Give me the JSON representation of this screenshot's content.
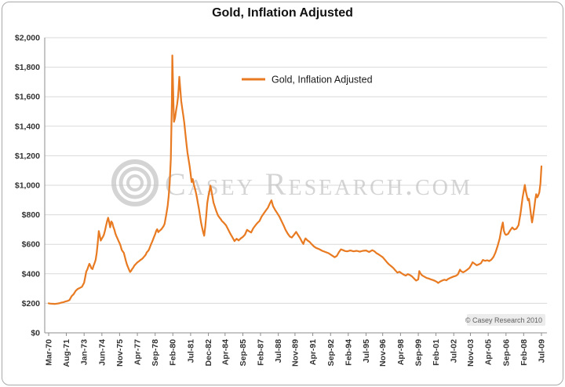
{
  "title": "Gold, Inflation Adjusted",
  "legend": {
    "label": "Gold, Inflation Adjusted"
  },
  "watermark": {
    "text": "Casey Research.com"
  },
  "copyright": "© Casey Research 2010",
  "chart_data": {
    "type": "line",
    "title": "Gold, Inflation Adjusted",
    "series_name": "Gold, Inflation Adjusted",
    "line_color": "#E87A22",
    "grid": true,
    "legend_position": "top-center",
    "ylim": [
      0,
      2000
    ],
    "yticks": [
      0,
      200,
      400,
      600,
      800,
      1000,
      1200,
      1400,
      1600,
      1800,
      2000
    ],
    "ytick_labels": [
      "$0",
      "$200",
      "$400",
      "$600",
      "$800",
      "$1,000",
      "$1,200",
      "$1,400",
      "$1,600",
      "$1,800",
      "$2,000"
    ],
    "x_range": [
      1970.17,
      2009.5
    ],
    "x_ticks": [
      {
        "label": "Mar-70",
        "year": 1970.17
      },
      {
        "label": "Aug-71",
        "year": 1971.58
      },
      {
        "label": "Jan-73",
        "year": 1973.0
      },
      {
        "label": "Jun-74",
        "year": 1974.42
      },
      {
        "label": "Nov-75",
        "year": 1975.83
      },
      {
        "label": "Apr-77",
        "year": 1977.25
      },
      {
        "label": "Sep-78",
        "year": 1978.67
      },
      {
        "label": "Feb-80",
        "year": 1980.08
      },
      {
        "label": "Jul-81",
        "year": 1981.5
      },
      {
        "label": "Dec-82",
        "year": 1982.92
      },
      {
        "label": "Apr-84",
        "year": 1984.25
      },
      {
        "label": "Sep-85",
        "year": 1985.67
      },
      {
        "label": "Feb-87",
        "year": 1987.08
      },
      {
        "label": "Jul-88",
        "year": 1988.5
      },
      {
        "label": "Nov-89",
        "year": 1989.83
      },
      {
        "label": "Apr-91",
        "year": 1991.25
      },
      {
        "label": "Sep-92",
        "year": 1992.67
      },
      {
        "label": "Feb-94",
        "year": 1994.08
      },
      {
        "label": "Jul-95",
        "year": 1995.5
      },
      {
        "label": "Nov-96",
        "year": 1996.83
      },
      {
        "label": "Apr-98",
        "year": 1998.25
      },
      {
        "label": "Sep-99",
        "year": 1999.67
      },
      {
        "label": "Feb-01",
        "year": 2001.08
      },
      {
        "label": "Jul-02",
        "year": 2002.5
      },
      {
        "label": "Nov-03",
        "year": 2003.83
      },
      {
        "label": "Apr-05",
        "year": 2005.25
      },
      {
        "label": "Sep-06",
        "year": 2006.67
      },
      {
        "label": "Feb-08",
        "year": 2008.08
      },
      {
        "label": "Jul-09",
        "year": 2009.5
      }
    ],
    "points": [
      [
        1970.17,
        200
      ],
      [
        1970.33,
        198
      ],
      [
        1970.5,
        197
      ],
      [
        1970.67,
        196
      ],
      [
        1970.83,
        198
      ],
      [
        1971,
        200
      ],
      [
        1971.17,
        204
      ],
      [
        1971.33,
        207
      ],
      [
        1971.5,
        212
      ],
      [
        1971.67,
        216
      ],
      [
        1971.83,
        222
      ],
      [
        1972,
        248
      ],
      [
        1972.17,
        262
      ],
      [
        1972.33,
        285
      ],
      [
        1972.5,
        298
      ],
      [
        1972.67,
        305
      ],
      [
        1972.83,
        312
      ],
      [
        1973,
        340
      ],
      [
        1973.08,
        375
      ],
      [
        1973.17,
        415
      ],
      [
        1973.25,
        428
      ],
      [
        1973.33,
        448
      ],
      [
        1973.42,
        468
      ],
      [
        1973.5,
        455
      ],
      [
        1973.58,
        438
      ],
      [
        1973.67,
        432
      ],
      [
        1973.75,
        455
      ],
      [
        1973.83,
        470
      ],
      [
        1973.92,
        495
      ],
      [
        1974,
        540
      ],
      [
        1974.08,
        600
      ],
      [
        1974.17,
        690
      ],
      [
        1974.25,
        660
      ],
      [
        1974.33,
        625
      ],
      [
        1974.42,
        640
      ],
      [
        1974.5,
        650
      ],
      [
        1974.58,
        665
      ],
      [
        1974.67,
        695
      ],
      [
        1974.75,
        725
      ],
      [
        1974.83,
        755
      ],
      [
        1974.92,
        780
      ],
      [
        1975,
        750
      ],
      [
        1975.08,
        715
      ],
      [
        1975.17,
        755
      ],
      [
        1975.25,
        745
      ],
      [
        1975.33,
        718
      ],
      [
        1975.42,
        698
      ],
      [
        1975.5,
        672
      ],
      [
        1975.58,
        655
      ],
      [
        1975.67,
        638
      ],
      [
        1975.75,
        622
      ],
      [
        1975.83,
        608
      ],
      [
        1975.92,
        588
      ],
      [
        1976,
        562
      ],
      [
        1976.08,
        552
      ],
      [
        1976.17,
        542
      ],
      [
        1976.25,
        515
      ],
      [
        1976.33,
        488
      ],
      [
        1976.42,
        462
      ],
      [
        1976.5,
        445
      ],
      [
        1976.58,
        428
      ],
      [
        1976.67,
        412
      ],
      [
        1976.75,
        420
      ],
      [
        1976.83,
        432
      ],
      [
        1976.92,
        442
      ],
      [
        1977,
        455
      ],
      [
        1977.08,
        462
      ],
      [
        1977.17,
        470
      ],
      [
        1977.25,
        477
      ],
      [
        1977.33,
        482
      ],
      [
        1977.42,
        488
      ],
      [
        1977.5,
        494
      ],
      [
        1977.58,
        498
      ],
      [
        1977.67,
        505
      ],
      [
        1977.75,
        512
      ],
      [
        1977.83,
        520
      ],
      [
        1977.92,
        530
      ],
      [
        1978,
        545
      ],
      [
        1978.08,
        552
      ],
      [
        1978.17,
        562
      ],
      [
        1978.25,
        580
      ],
      [
        1978.33,
        598
      ],
      [
        1978.42,
        615
      ],
      [
        1978.5,
        632
      ],
      [
        1978.58,
        650
      ],
      [
        1978.67,
        668
      ],
      [
        1978.75,
        690
      ],
      [
        1978.83,
        702
      ],
      [
        1978.92,
        682
      ],
      [
        1979,
        690
      ],
      [
        1979.08,
        696
      ],
      [
        1979.17,
        702
      ],
      [
        1979.25,
        712
      ],
      [
        1979.33,
        722
      ],
      [
        1979.42,
        738
      ],
      [
        1979.5,
        775
      ],
      [
        1979.58,
        815
      ],
      [
        1979.67,
        862
      ],
      [
        1979.75,
        930
      ],
      [
        1979.83,
        1010
      ],
      [
        1979.92,
        1180
      ],
      [
        1980,
        1560
      ],
      [
        1980.04,
        1880
      ],
      [
        1980.08,
        1745
      ],
      [
        1980.13,
        1560
      ],
      [
        1980.17,
        1430
      ],
      [
        1980.25,
        1455
      ],
      [
        1980.33,
        1500
      ],
      [
        1980.42,
        1548
      ],
      [
        1980.5,
        1600
      ],
      [
        1980.55,
        1660
      ],
      [
        1980.6,
        1735
      ],
      [
        1980.67,
        1655
      ],
      [
        1980.75,
        1572
      ],
      [
        1980.83,
        1522
      ],
      [
        1980.92,
        1468
      ],
      [
        1981,
        1420
      ],
      [
        1981.08,
        1352
      ],
      [
        1981.17,
        1282
      ],
      [
        1981.25,
        1222
      ],
      [
        1981.33,
        1178
      ],
      [
        1981.42,
        1132
      ],
      [
        1981.5,
        1078
      ],
      [
        1981.58,
        1022
      ],
      [
        1981.67,
        1042
      ],
      [
        1981.75,
        1008
      ],
      [
        1981.83,
        982
      ],
      [
        1981.92,
        952
      ],
      [
        1982,
        918
      ],
      [
        1982.08,
        878
      ],
      [
        1982.17,
        838
      ],
      [
        1982.25,
        792
      ],
      [
        1982.33,
        748
      ],
      [
        1982.42,
        712
      ],
      [
        1982.5,
        682
      ],
      [
        1982.58,
        658
      ],
      [
        1982.67,
        722
      ],
      [
        1982.75,
        798
      ],
      [
        1982.83,
        878
      ],
      [
        1982.92,
        928
      ],
      [
        1983,
        958
      ],
      [
        1983.08,
        998
      ],
      [
        1983.17,
        958
      ],
      [
        1983.25,
        918
      ],
      [
        1983.33,
        882
      ],
      [
        1983.42,
        858
      ],
      [
        1983.5,
        838
      ],
      [
        1983.58,
        818
      ],
      [
        1983.67,
        798
      ],
      [
        1983.75,
        788
      ],
      [
        1983.83,
        778
      ],
      [
        1983.92,
        768
      ],
      [
        1984,
        758
      ],
      [
        1984.17,
        744
      ],
      [
        1984.33,
        728
      ],
      [
        1984.5,
        700
      ],
      [
        1984.67,
        672
      ],
      [
        1984.83,
        648
      ],
      [
        1985,
        622
      ],
      [
        1985.17,
        638
      ],
      [
        1985.33,
        626
      ],
      [
        1985.5,
        640
      ],
      [
        1985.67,
        650
      ],
      [
        1985.83,
        665
      ],
      [
        1986,
        698
      ],
      [
        1986.17,
        688
      ],
      [
        1986.33,
        680
      ],
      [
        1986.5,
        708
      ],
      [
        1986.67,
        728
      ],
      [
        1986.83,
        744
      ],
      [
        1987,
        758
      ],
      [
        1987.17,
        788
      ],
      [
        1987.33,
        808
      ],
      [
        1987.5,
        828
      ],
      [
        1987.67,
        848
      ],
      [
        1987.83,
        878
      ],
      [
        1987.95,
        898
      ],
      [
        1988.08,
        858
      ],
      [
        1988.25,
        832
      ],
      [
        1988.42,
        810
      ],
      [
        1988.58,
        788
      ],
      [
        1988.75,
        758
      ],
      [
        1988.92,
        728
      ],
      [
        1989.08,
        698
      ],
      [
        1989.25,
        672
      ],
      [
        1989.42,
        652
      ],
      [
        1989.58,
        646
      ],
      [
        1989.75,
        664
      ],
      [
        1989.92,
        684
      ],
      [
        1990.08,
        662
      ],
      [
        1990.25,
        640
      ],
      [
        1990.42,
        612
      ],
      [
        1990.5,
        602
      ],
      [
        1990.58,
        624
      ],
      [
        1990.67,
        640
      ],
      [
        1990.83,
        626
      ],
      [
        1991,
        616
      ],
      [
        1991.17,
        600
      ],
      [
        1991.33,
        586
      ],
      [
        1991.5,
        576
      ],
      [
        1991.67,
        570
      ],
      [
        1991.83,
        564
      ],
      [
        1992,
        556
      ],
      [
        1992.25,
        548
      ],
      [
        1992.5,
        540
      ],
      [
        1992.75,
        526
      ],
      [
        1993,
        512
      ],
      [
        1993.17,
        522
      ],
      [
        1993.33,
        546
      ],
      [
        1993.5,
        566
      ],
      [
        1993.67,
        560
      ],
      [
        1993.83,
        554
      ],
      [
        1994,
        552
      ],
      [
        1994.25,
        558
      ],
      [
        1994.5,
        552
      ],
      [
        1994.75,
        556
      ],
      [
        1995,
        550
      ],
      [
        1995.25,
        556
      ],
      [
        1995.5,
        558
      ],
      [
        1995.75,
        548
      ],
      [
        1996,
        560
      ],
      [
        1996.17,
        552
      ],
      [
        1996.33,
        540
      ],
      [
        1996.5,
        532
      ],
      [
        1996.67,
        522
      ],
      [
        1996.83,
        512
      ],
      [
        1997,
        496
      ],
      [
        1997.17,
        478
      ],
      [
        1997.33,
        464
      ],
      [
        1997.5,
        452
      ],
      [
        1997.67,
        440
      ],
      [
        1997.83,
        424
      ],
      [
        1998,
        408
      ],
      [
        1998.17,
        414
      ],
      [
        1998.33,
        404
      ],
      [
        1998.5,
        394
      ],
      [
        1998.67,
        388
      ],
      [
        1998.83,
        398
      ],
      [
        1999,
        392
      ],
      [
        1999.17,
        382
      ],
      [
        1999.33,
        368
      ],
      [
        1999.5,
        354
      ],
      [
        1999.67,
        362
      ],
      [
        1999.75,
        418
      ],
      [
        1999.83,
        404
      ],
      [
        1999.92,
        394
      ],
      [
        2000,
        388
      ],
      [
        2000.17,
        380
      ],
      [
        2000.33,
        372
      ],
      [
        2000.5,
        368
      ],
      [
        2000.67,
        362
      ],
      [
        2000.83,
        358
      ],
      [
        2001,
        352
      ],
      [
        2001.17,
        344
      ],
      [
        2001.25,
        338
      ],
      [
        2001.42,
        348
      ],
      [
        2001.58,
        354
      ],
      [
        2001.75,
        360
      ],
      [
        2001.92,
        356
      ],
      [
        2002,
        362
      ],
      [
        2002.17,
        370
      ],
      [
        2002.33,
        376
      ],
      [
        2002.5,
        382
      ],
      [
        2002.67,
        386
      ],
      [
        2002.83,
        396
      ],
      [
        2003,
        428
      ],
      [
        2003.08,
        418
      ],
      [
        2003.25,
        410
      ],
      [
        2003.42,
        418
      ],
      [
        2003.58,
        428
      ],
      [
        2003.75,
        440
      ],
      [
        2003.92,
        464
      ],
      [
        2004,
        478
      ],
      [
        2004.17,
        468
      ],
      [
        2004.33,
        458
      ],
      [
        2004.5,
        464
      ],
      [
        2004.67,
        472
      ],
      [
        2004.83,
        494
      ],
      [
        2005,
        488
      ],
      [
        2005.17,
        492
      ],
      [
        2005.33,
        486
      ],
      [
        2005.5,
        496
      ],
      [
        2005.67,
        514
      ],
      [
        2005.83,
        544
      ],
      [
        2006,
        588
      ],
      [
        2006.17,
        640
      ],
      [
        2006.33,
        718
      ],
      [
        2006.42,
        748
      ],
      [
        2006.5,
        692
      ],
      [
        2006.58,
        672
      ],
      [
        2006.67,
        664
      ],
      [
        2006.83,
        670
      ],
      [
        2007,
        694
      ],
      [
        2007.17,
        714
      ],
      [
        2007.33,
        700
      ],
      [
        2007.5,
        706
      ],
      [
        2007.67,
        730
      ],
      [
        2007.83,
        808
      ],
      [
        2008,
        918
      ],
      [
        2008.17,
        1002
      ],
      [
        2008.25,
        962
      ],
      [
        2008.33,
        930
      ],
      [
        2008.42,
        898
      ],
      [
        2008.5,
        908
      ],
      [
        2008.58,
        858
      ],
      [
        2008.67,
        798
      ],
      [
        2008.75,
        748
      ],
      [
        2008.83,
        788
      ],
      [
        2008.92,
        842
      ],
      [
        2009,
        898
      ],
      [
        2009.08,
        940
      ],
      [
        2009.17,
        918
      ],
      [
        2009.25,
        932
      ],
      [
        2009.33,
        952
      ],
      [
        2009.42,
        1012
      ],
      [
        2009.5,
        1128
      ]
    ]
  }
}
